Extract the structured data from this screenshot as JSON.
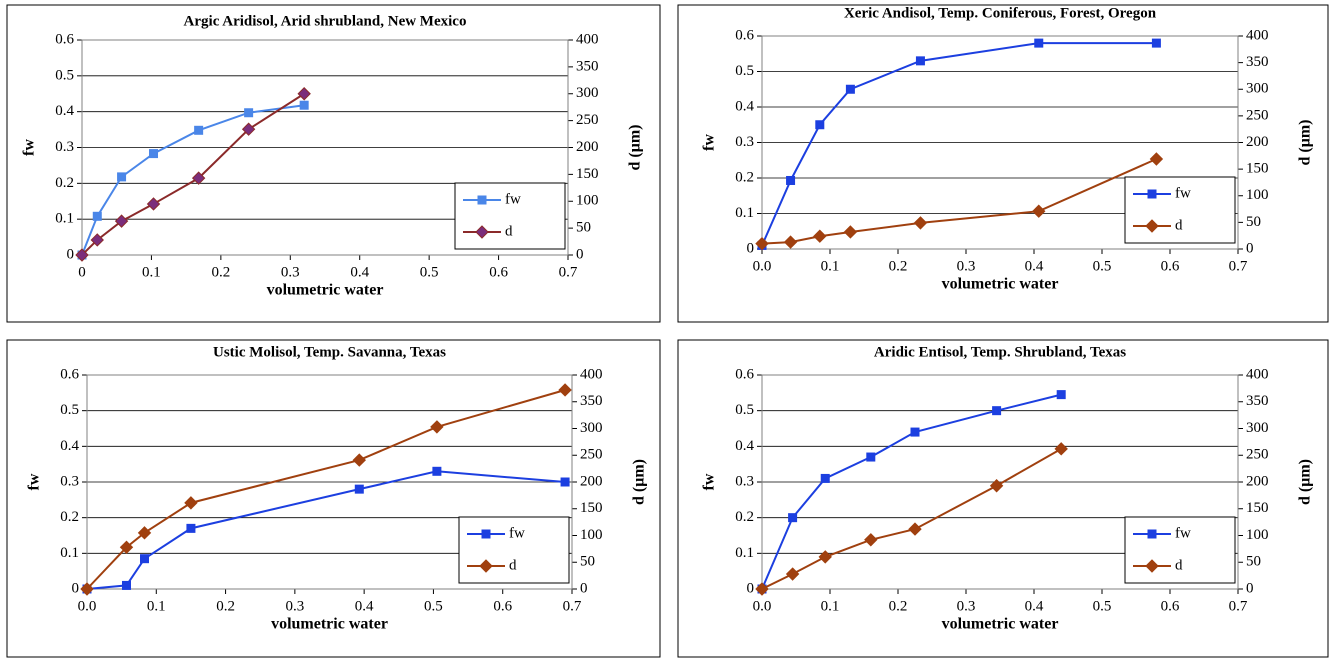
{
  "chart_data": [
    {
      "type": "line",
      "title": "Argic Aridisol, Arid shrubland, New Mexico",
      "x_label": "volumetric water",
      "y_label": "fw",
      "y2_label": "d (μm)",
      "x": [
        0,
        0.022,
        0.057,
        0.103,
        0.168,
        0.24,
        0.32
      ],
      "series": [
        {
          "name": "fw",
          "color": "#4a86e8",
          "marker": "square",
          "values": [
            0,
            0.108,
            0.218,
            0.283,
            0.348,
            0.397,
            0.418
          ]
        },
        {
          "name": "d",
          "color": "#8b2a2a",
          "marker": "diamond",
          "marker_fill": "#7b2d7b",
          "axis": "y2",
          "values": [
            0,
            28,
            63,
            95,
            143,
            234,
            300
          ]
        }
      ],
      "xlim": [
        0,
        0.7
      ],
      "xticks": [
        0,
        0.1,
        0.2,
        0.3,
        0.4,
        0.5,
        0.6,
        0.7
      ],
      "ylim": [
        0,
        0.6
      ],
      "yticks": [
        0,
        0.1,
        0.2,
        0.3,
        0.4,
        0.5,
        0.6
      ],
      "y2lim": [
        0,
        400
      ],
      "y2ticks": [
        0,
        50,
        100,
        150,
        200,
        250,
        300,
        350,
        400
      ],
      "grid": true,
      "legend": "lower right"
    },
    {
      "type": "line",
      "title": "Xeric Andisol, Temp. Coniferous, Forest, Oregon",
      "x_label": "volumetric water",
      "y_label": "fw",
      "y2_label": "d (μm)",
      "x": [
        0,
        0.042,
        0.085,
        0.13,
        0.233,
        0.407,
        0.58
      ],
      "series": [
        {
          "name": "fw",
          "color": "#1c3fe0",
          "marker": "square",
          "values": [
            0.01,
            0.193,
            0.35,
            0.45,
            0.53,
            0.58,
            0.58
          ]
        },
        {
          "name": "d",
          "color": "#a0400f",
          "marker": "diamond",
          "axis": "y2",
          "values": [
            10,
            13,
            24,
            32,
            49,
            71,
            169
          ]
        }
      ],
      "xlim": [
        0,
        0.7
      ],
      "xticks": [
        {
          "value": 0,
          "label": "0.0"
        },
        0.1,
        0.2,
        0.3,
        0.4,
        0.5,
        0.6,
        0.7
      ],
      "ylim": [
        0,
        0.6
      ],
      "yticks": [
        0,
        0.1,
        0.2,
        0.3,
        0.4,
        0.5,
        0.6
      ],
      "y2lim": [
        0,
        400
      ],
      "y2ticks": [
        0,
        50,
        100,
        150,
        200,
        250,
        300,
        350,
        400
      ],
      "grid": true,
      "legend": "lower right"
    },
    {
      "type": "line",
      "title": "Ustic Molisol, Temp. Savanna, Texas",
      "x_label": "volumetric water",
      "y_label": "fw",
      "y2_label": "d (μm)",
      "x": [
        0,
        0.057,
        0.083,
        0.15,
        0.393,
        0.505,
        0.69
      ],
      "series": [
        {
          "name": "fw",
          "color": "#1c3fe0",
          "marker": "square",
          "values": [
            0,
            0.01,
            0.085,
            0.17,
            0.28,
            0.33,
            0.3
          ]
        },
        {
          "name": "d",
          "color": "#a0400f",
          "marker": "diamond",
          "axis": "y2",
          "values": [
            0,
            78,
            105,
            161,
            241,
            303,
            372
          ]
        }
      ],
      "xlim": [
        0,
        0.7
      ],
      "xticks": [
        {
          "value": 0,
          "label": "0.0"
        },
        0.1,
        0.2,
        0.3,
        0.4,
        0.5,
        0.6,
        0.7
      ],
      "ylim": [
        0,
        0.6
      ],
      "yticks": [
        0,
        0.1,
        0.2,
        0.3,
        0.4,
        0.5,
        0.6
      ],
      "y2lim": [
        0,
        400
      ],
      "y2ticks": [
        0,
        50,
        100,
        150,
        200,
        250,
        300,
        350,
        400
      ],
      "grid": true,
      "legend": "lower right"
    },
    {
      "type": "line",
      "title": "Aridic Entisol, Temp. Shrubland, Texas",
      "x_label": "volumetric water",
      "y_label": "fw",
      "y2_label": "d (μm)",
      "x": [
        0,
        0.045,
        0.093,
        0.16,
        0.225,
        0.345,
        0.44
      ],
      "series": [
        {
          "name": "fw",
          "color": "#1c3fe0",
          "marker": "square",
          "values": [
            0,
            0.2,
            0.31,
            0.37,
            0.44,
            0.5,
            0.545
          ]
        },
        {
          "name": "d",
          "color": "#a0400f",
          "marker": "diamond",
          "axis": "y2",
          "values": [
            0,
            28,
            60,
            92,
            112,
            193,
            262
          ]
        }
      ],
      "xlim": [
        0,
        0.7
      ],
      "xticks": [
        {
          "value": 0,
          "label": "0.0"
        },
        0.1,
        0.2,
        0.3,
        0.4,
        0.5,
        0.6,
        0.7
      ],
      "ylim": [
        0,
        0.6
      ],
      "yticks": [
        0,
        0.1,
        0.2,
        0.3,
        0.4,
        0.5,
        0.6
      ],
      "y2lim": [
        0,
        400
      ],
      "y2ticks": [
        0,
        50,
        100,
        150,
        200,
        250,
        300,
        350,
        400
      ],
      "grid": true,
      "legend": "lower right"
    }
  ]
}
